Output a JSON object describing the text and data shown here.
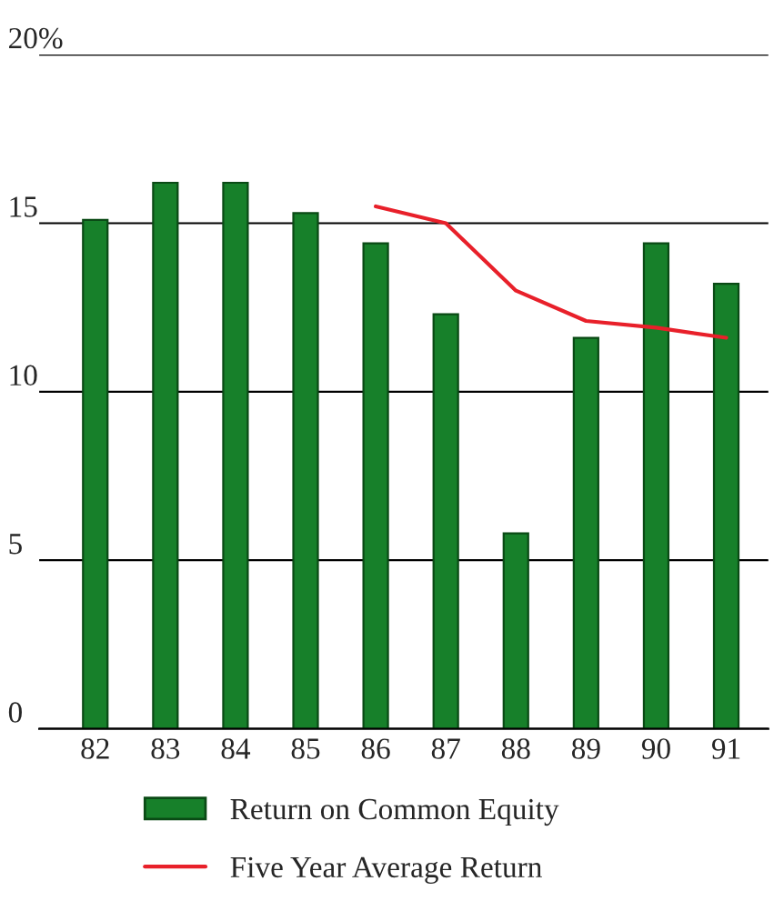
{
  "chart_data": {
    "type": "bar",
    "categories": [
      "82",
      "83",
      "84",
      "85",
      "86",
      "87",
      "88",
      "89",
      "90",
      "91"
    ],
    "series": [
      {
        "name": "Return on Common Equity",
        "color": "#17802a",
        "values": [
          15.1,
          16.2,
          16.2,
          15.3,
          14.4,
          12.3,
          5.8,
          11.6,
          14.4,
          13.2
        ]
      },
      {
        "name": "Five Year Average Return",
        "type": "line",
        "color": "#e8202a",
        "values": [
          null,
          null,
          null,
          null,
          15.5,
          15.0,
          13.0,
          12.1,
          11.9,
          11.6
        ]
      }
    ],
    "ylim": [
      0,
      20
    ],
    "yticks": [
      0,
      5,
      10,
      15,
      {
        "value": 20,
        "label": "20%"
      }
    ],
    "grid": "y",
    "legend": "bottom"
  }
}
